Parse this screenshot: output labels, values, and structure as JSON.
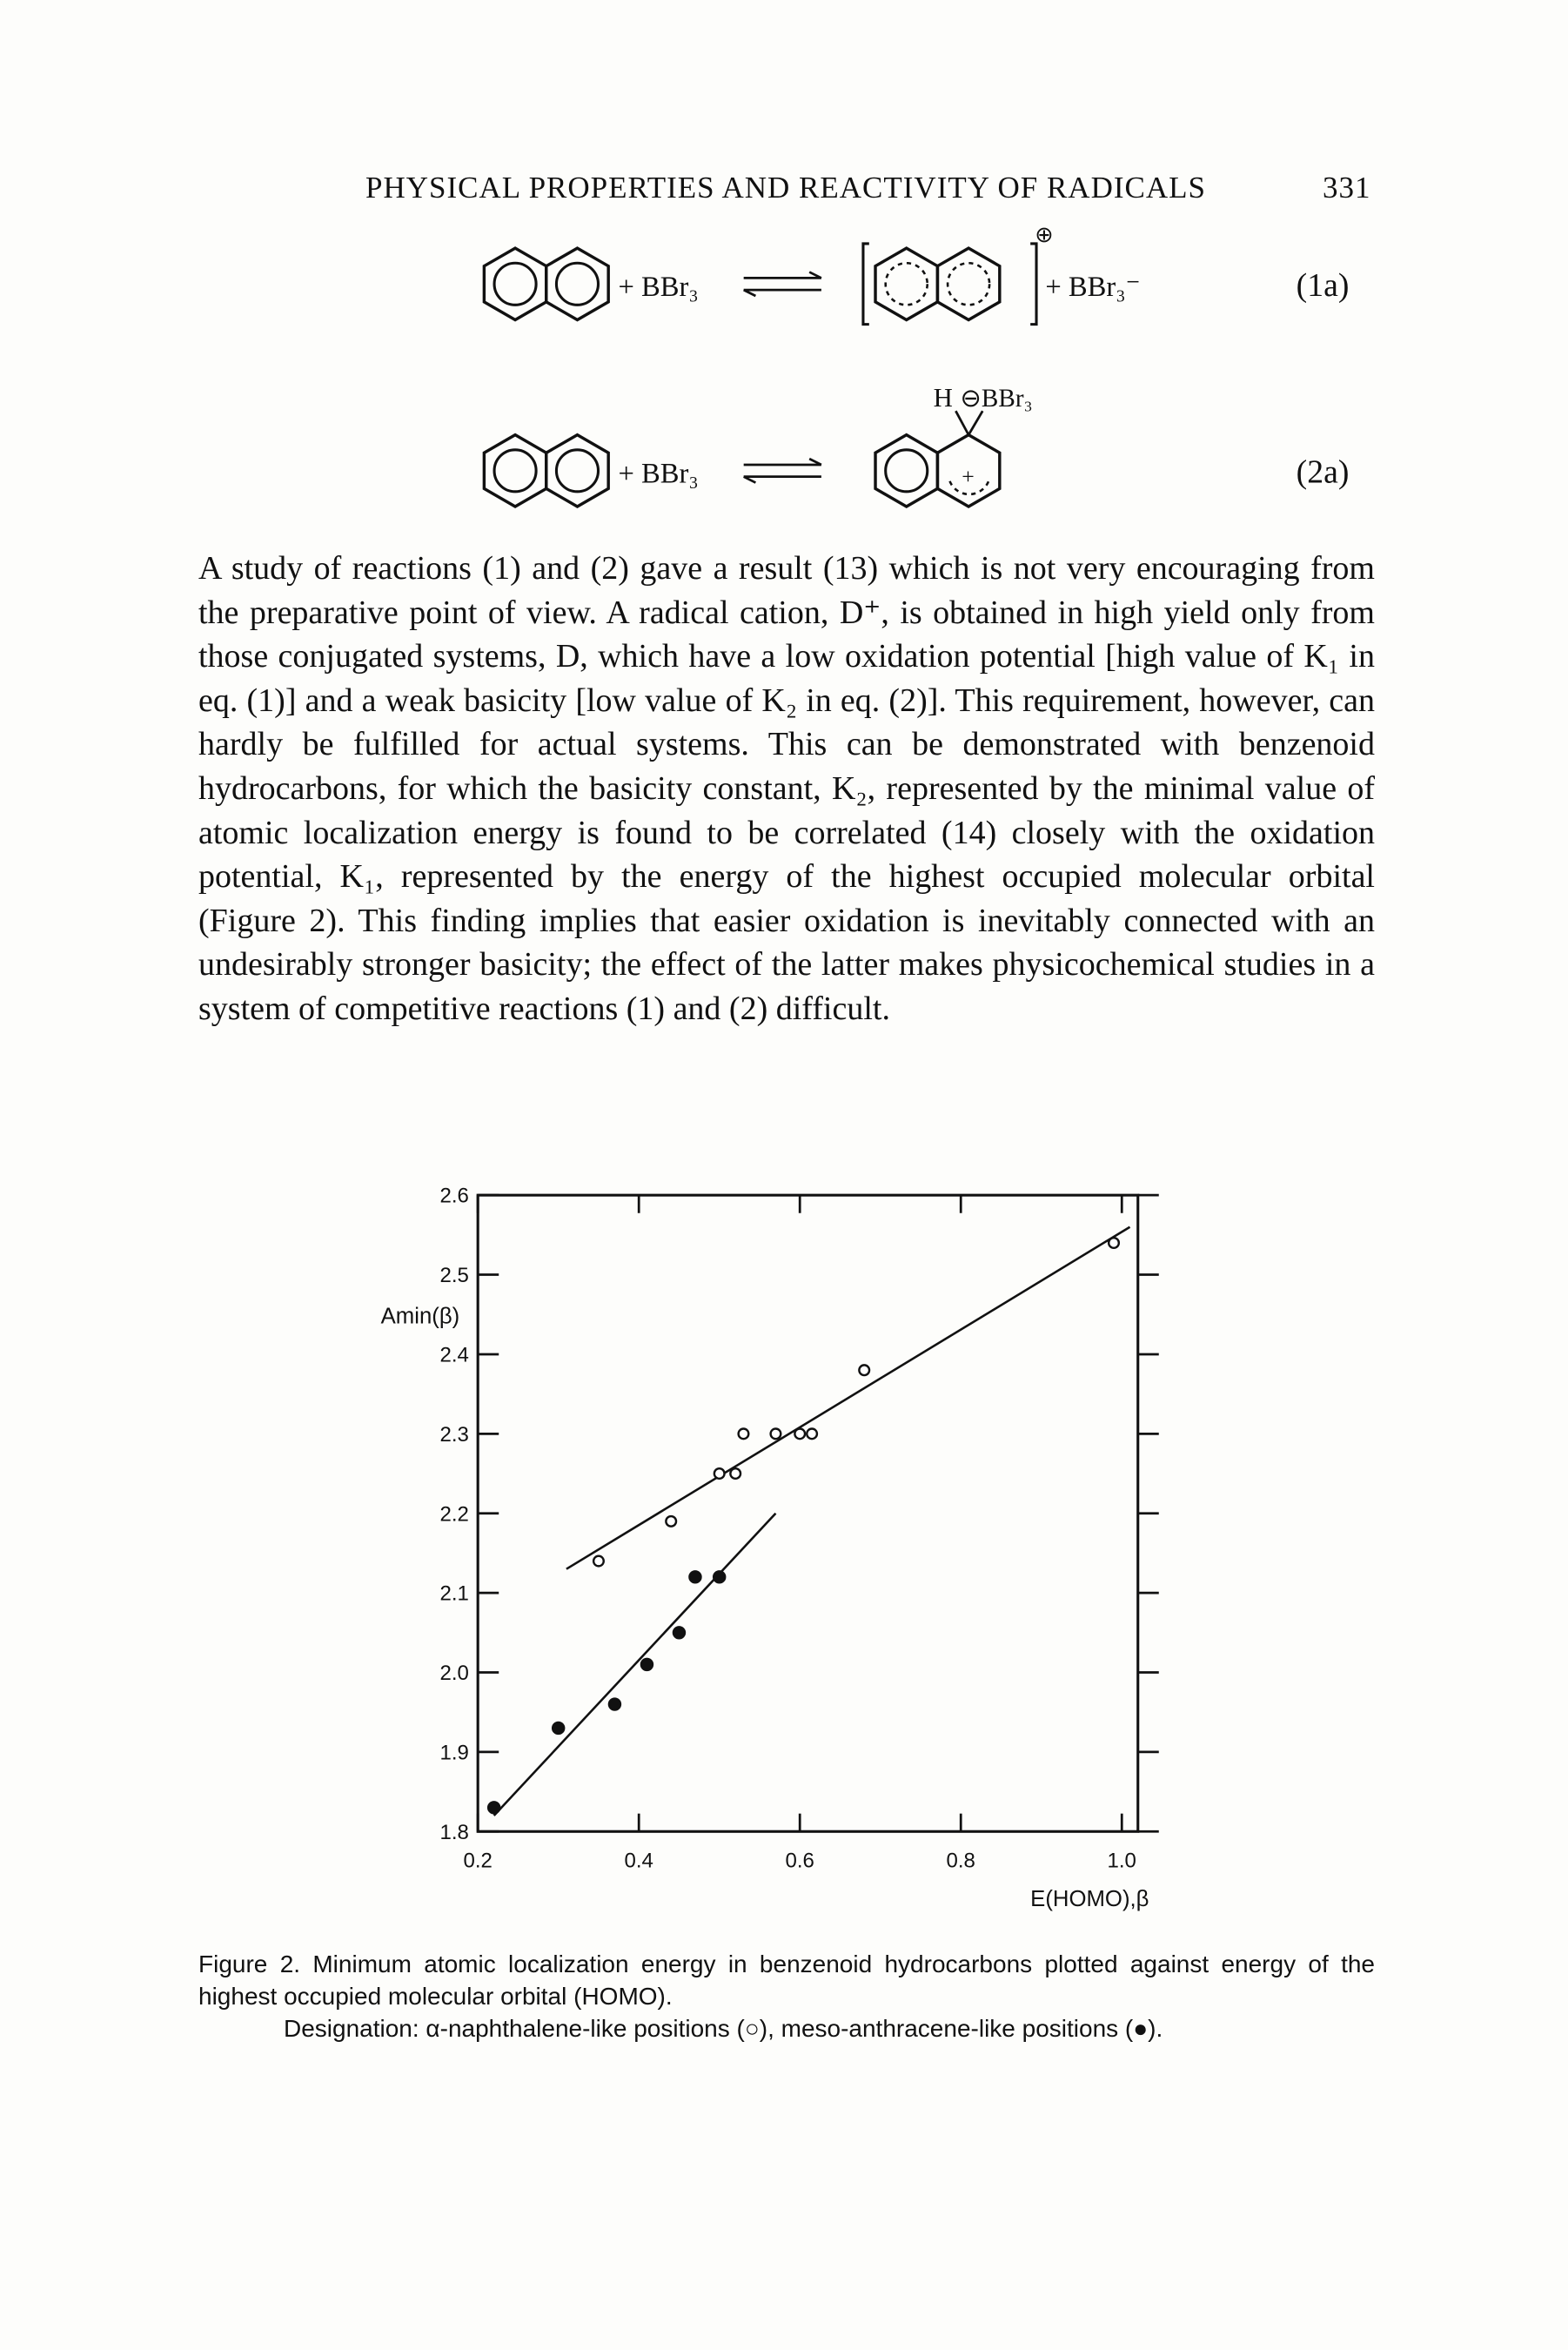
{
  "header": {
    "title": "PHYSICAL PROPERTIES AND REACTIVITY OF RADICALS",
    "page_number": "331"
  },
  "equations": [
    {
      "reagent": "+ BBr₃",
      "charge": "⊕",
      "product_counterion": "+ BBr₃⁻",
      "number": "(1a)"
    },
    {
      "reagent": "+ BBr₃",
      "substituent": "H",
      "complex_ion": "⊖BBr₃",
      "charge": "+",
      "number": "(2a)"
    }
  ],
  "paragraph": "A study of reactions (1) and (2) gave a result (13) which is not very encouraging from the preparative point of view. A radical cation, D⁺, is obtained in high yield only from those conjugated systems, D, which have a low oxidation potential [high value of K₁ in eq. (1)] and a weak basicity [low value of K₂ in eq. (2)]. This requirement, however, can hardly be fulfilled for actual systems. This can be demonstrated with benzenoid hydrocarbons, for which the basicity constant, K₂, represented by the minimal value of atomic localization energy is found to be correlated (14) closely with the oxidation potential, K₁, represented by the energy of the highest occupied molecular orbital (Figure 2). This finding implies that easier oxidation is inevitably connected with an undesirably stronger basicity; the effect of the latter makes physicochemical studies in a system of competitive reactions (1) and (2) difficult.",
  "chart_data": {
    "type": "scatter",
    "x_label": "E(HOMO),β",
    "y_label": "Amin(β)",
    "xlim": [
      0.2,
      1.02
    ],
    "ylim": [
      1.8,
      2.6
    ],
    "xticks": [
      0.2,
      0.4,
      0.6,
      0.8,
      {
        "value": 1,
        "label": "1.0"
      }
    ],
    "yticks": [
      1.8,
      1.9,
      {
        "value": 2,
        "label": "2.0"
      },
      2.1,
      2.2,
      2.3,
      2.4,
      2.5,
      2.6
    ],
    "series": [
      {
        "marker": "open",
        "color": "#111111",
        "x": [
          0.35,
          0.44,
          0.5,
          0.52,
          0.53,
          0.57,
          0.6,
          0.615,
          0.68,
          0.99
        ],
        "values": [
          2.14,
          2.19,
          2.25,
          2.25,
          2.3,
          2.3,
          2.3,
          2.3,
          2.38,
          2.54
        ]
      },
      {
        "marker": "filled",
        "color": "#111111",
        "x": [
          0.22,
          0.3,
          0.37,
          0.41,
          0.45,
          0.47,
          0.5
        ],
        "values": [
          1.83,
          1.93,
          1.96,
          2.01,
          2.05,
          2.12,
          2.12
        ]
      }
    ],
    "fit_lines": [
      {
        "x": [
          0.31,
          1.01
        ],
        "y": [
          2.13,
          2.56
        ]
      },
      {
        "x": [
          0.22,
          0.57
        ],
        "y": [
          1.82,
          2.2
        ]
      }
    ]
  },
  "caption": {
    "text": "Figure 2. Minimum atomic localization energy in benzenoid hydrocarbons plotted against energy of the highest occupied molecular orbital (HOMO).",
    "designation": "Designation: α-naphthalene-like positions (○), meso-anthracene-like positions (●)."
  }
}
